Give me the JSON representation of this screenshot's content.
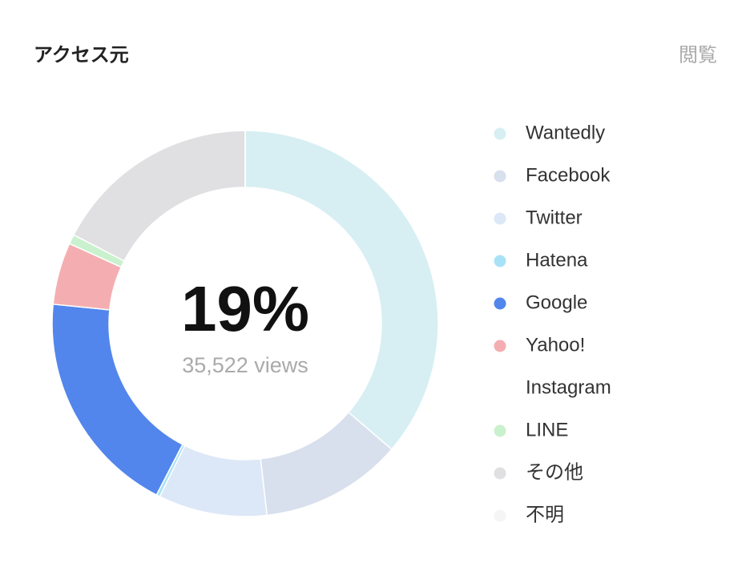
{
  "chart_data": {
    "type": "pie",
    "donut": true,
    "title": "アクセス元",
    "menu_label": "閲覧",
    "center_text": "19%",
    "center_subtext": "35,522 views",
    "categories": [
      "Wantedly",
      "Facebook",
      "Twitter",
      "Hatena",
      "Google",
      "Yahoo!",
      "Instagram",
      "LINE",
      "その他",
      "不明"
    ],
    "values": [
      36.3,
      11.9,
      9.1,
      0.3,
      19.0,
      5.2,
      0,
      0.8,
      17.4,
      0
    ],
    "colors": [
      "#d7eff3",
      "#d8dfed",
      "#dce8f7",
      "#a9e2f7",
      "#5386ec",
      "#f4aeb1",
      "#ffffff",
      "#c9f1cd",
      "#e0e0e2",
      "#f5f5f6"
    ]
  }
}
